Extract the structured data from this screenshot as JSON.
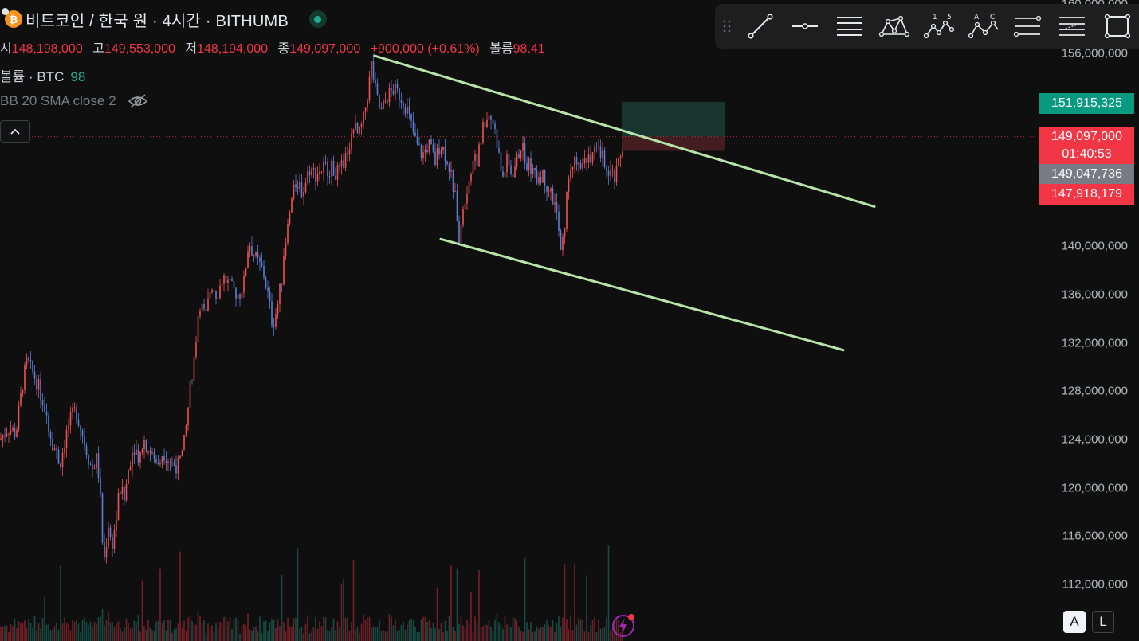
{
  "header": {
    "title": "비트코인 / 한국 원 · 4시간 · BITHUMB"
  },
  "ohlc": {
    "open_label": "시",
    "open": "148,198,000",
    "high_label": "고",
    "high": "149,553,000",
    "low_label": "저",
    "low": "148,194,000",
    "close_label": "종",
    "close": "149,097,000",
    "change": "+900,000 (+0.61%)",
    "volume_label": "볼륨",
    "volume": "98.41"
  },
  "volume_indicator": {
    "label": "볼륨 · BTC",
    "value": "98"
  },
  "bb_indicator": {
    "label": "BB 20 SMA close 2"
  },
  "price_axis": {
    "ticks": [
      "156,000,000",
      "140,000,000",
      "136,000,000",
      "132,000,000",
      "128,000,000",
      "124,000,000",
      "120,000,000",
      "116,000,000",
      "112,000,000"
    ],
    "top_partial": "160,000,000",
    "target_label": "151,915,325",
    "last_price": "149,097,000",
    "countdown": "01:40:53",
    "cursor_price": "149,047,736",
    "stop_label": "147,918,179"
  },
  "toolbar": {
    "icons": [
      "trend-line-icon",
      "horizontal-ray-icon",
      "parallel-lines-icon",
      "pitchfork-icon",
      "xabcd-pattern-icon",
      "elliott-wave-icon",
      "abcd-pattern-icon",
      "fib-channel-icon",
      "fib-retracement-icon",
      "rectangle-icon"
    ],
    "elliott_numbers": "1  5",
    "abc_letters": "A  C"
  },
  "bottom": {
    "auto_label": "A",
    "log_label": "L"
  },
  "colors": {
    "up": "#ef5350",
    "down": "#5b7fd6",
    "trendline": "#b7e4a8",
    "profit_zone": "#1b3c35",
    "loss_zone": "#4a1f23",
    "last_price": "#f23645",
    "target": "#089981"
  },
  "chart_data": {
    "type": "candlestick",
    "symbol": "BTC/KRW",
    "interval": "4h",
    "y_range": [
      110000000,
      160000000
    ],
    "y_ticks": [
      156000000,
      140000000,
      136000000,
      132000000,
      128000000,
      124000000,
      120000000,
      116000000,
      112000000
    ],
    "price_path": [
      [
        0,
        124.0
      ],
      [
        10,
        125.0
      ],
      [
        20,
        124.5
      ],
      [
        28,
        128.5
      ],
      [
        34,
        130.5
      ],
      [
        45,
        129.0
      ],
      [
        55,
        127.0
      ],
      [
        65,
        124.0
      ],
      [
        75,
        122.0
      ],
      [
        85,
        125.0
      ],
      [
        95,
        126.5
      ],
      [
        105,
        124.0
      ],
      [
        115,
        121.5
      ],
      [
        122,
        122.5
      ],
      [
        126,
        119.0
      ],
      [
        130,
        113.5
      ],
      [
        136,
        117.0
      ],
      [
        140,
        115.0
      ],
      [
        146,
        117.5
      ],
      [
        150,
        120.0
      ],
      [
        156,
        119.0
      ],
      [
        162,
        122.0
      ],
      [
        168,
        123.5
      ],
      [
        175,
        122.5
      ],
      [
        180,
        124.0
      ],
      [
        188,
        123.0
      ],
      [
        195,
        122.0
      ],
      [
        205,
        123.0
      ],
      [
        215,
        122.0
      ],
      [
        225,
        121.8
      ],
      [
        232,
        124.0
      ],
      [
        238,
        128.0
      ],
      [
        244,
        131.0
      ],
      [
        250,
        135.5
      ],
      [
        258,
        134.0
      ],
      [
        265,
        137.0
      ],
      [
        272,
        136.0
      ],
      [
        280,
        137.5
      ],
      [
        290,
        136.5
      ],
      [
        300,
        136.0
      ],
      [
        306,
        137.0
      ],
      [
        312,
        140.5
      ],
      [
        320,
        139.0
      ],
      [
        330,
        138.0
      ],
      [
        336,
        136.0
      ],
      [
        342,
        133.5
      ],
      [
        348,
        135.0
      ],
      [
        355,
        138.0
      ],
      [
        360,
        141.0
      ],
      [
        365,
        143.5
      ],
      [
        372,
        145.5
      ],
      [
        380,
        144.5
      ],
      [
        388,
        146.5
      ],
      [
        396,
        146.0
      ],
      [
        405,
        146.5
      ],
      [
        415,
        146.5
      ],
      [
        425,
        146.0
      ],
      [
        432,
        147.0
      ],
      [
        438,
        148.5
      ],
      [
        444,
        150.0
      ],
      [
        450,
        149.0
      ],
      [
        456,
        150.5
      ],
      [
        462,
        153.0
      ],
      [
        466,
        155.0
      ],
      [
        472,
        152.5
      ],
      [
        478,
        151.0
      ],
      [
        486,
        152.5
      ],
      [
        494,
        153.0
      ],
      [
        502,
        152.5
      ],
      [
        510,
        151.5
      ],
      [
        516,
        150.0
      ],
      [
        522,
        148.5
      ],
      [
        530,
        147.5
      ],
      [
        538,
        148.5
      ],
      [
        546,
        147.0
      ],
      [
        552,
        148.5
      ],
      [
        560,
        147.5
      ],
      [
        566,
        146.0
      ],
      [
        572,
        143.5
      ],
      [
        576,
        141.0
      ],
      [
        580,
        143.0
      ],
      [
        586,
        145.0
      ],
      [
        592,
        146.5
      ],
      [
        600,
        147.5
      ],
      [
        606,
        150.0
      ],
      [
        612,
        151.0
      ],
      [
        618,
        150.5
      ],
      [
        624,
        148.5
      ],
      [
        630,
        145.5
      ],
      [
        636,
        147.0
      ],
      [
        642,
        146.0
      ],
      [
        648,
        147.0
      ],
      [
        654,
        148.5
      ],
      [
        660,
        147.0
      ],
      [
        666,
        146.5
      ],
      [
        672,
        145.5
      ],
      [
        678,
        146.0
      ],
      [
        684,
        145.5
      ],
      [
        690,
        144.5
      ],
      [
        696,
        143.5
      ],
      [
        700,
        142.0
      ],
      [
        704,
        139.0
      ],
      [
        708,
        141.5
      ],
      [
        712,
        145.0
      ],
      [
        718,
        146.5
      ],
      [
        724,
        147.5
      ],
      [
        730,
        147.0
      ],
      [
        736,
        147.5
      ],
      [
        742,
        147.0
      ],
      [
        748,
        148.0
      ],
      [
        754,
        147.5
      ],
      [
        760,
        147.0
      ],
      [
        766,
        146.0
      ],
      [
        772,
        145.5
      ],
      [
        778,
        147.5
      ],
      [
        784,
        149.1
      ]
    ],
    "trendlines": [
      {
        "name": "upper-channel-line",
        "from": [
          470,
          155.8
        ],
        "to": [
          1097,
          143.3
        ]
      },
      {
        "name": "lower-channel-line",
        "from": [
          553,
          140.6
        ],
        "to": [
          1058,
          131.4
        ]
      }
    ],
    "position": {
      "entry": 149097000,
      "target": 151915325,
      "stop": 147918179
    },
    "last_price": 149097000
  }
}
